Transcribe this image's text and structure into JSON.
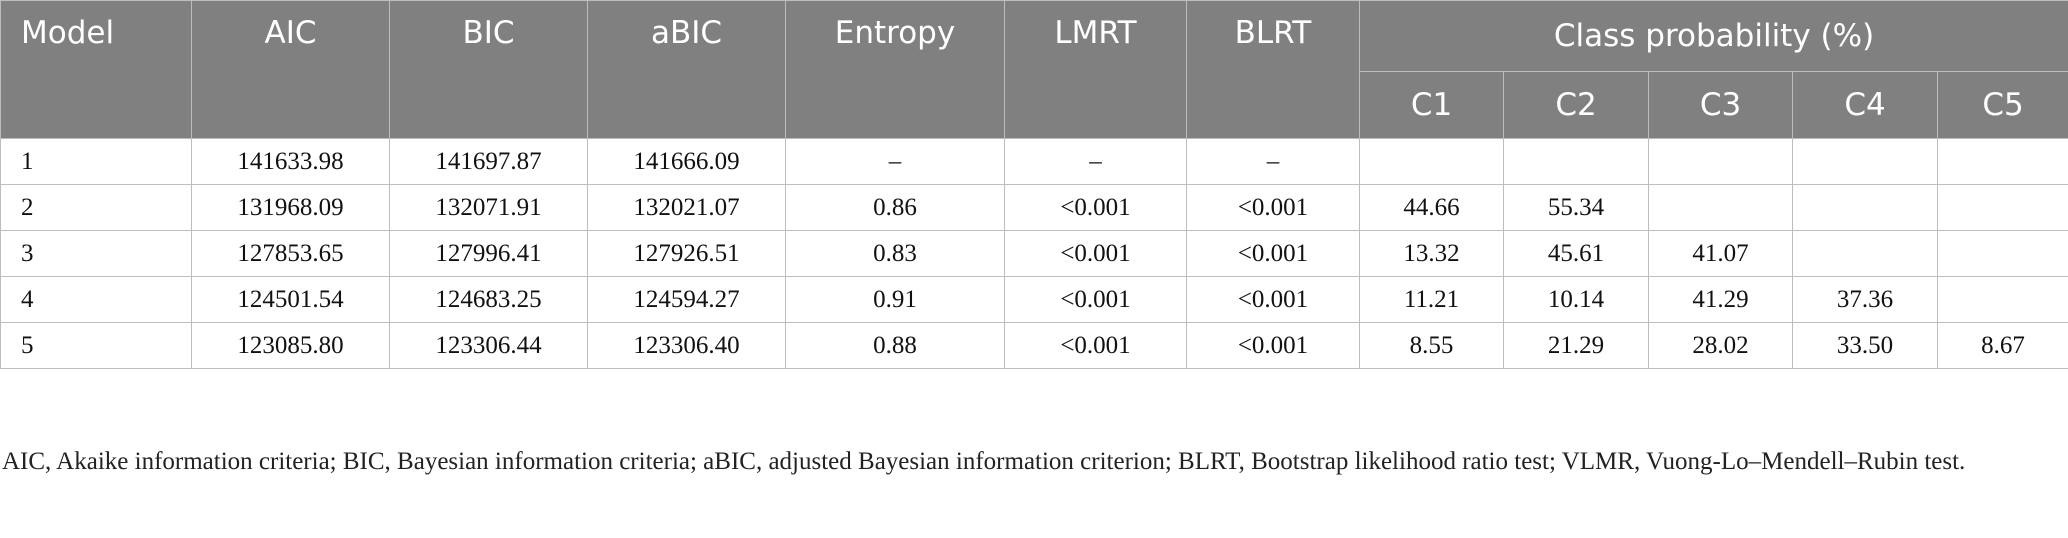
{
  "table": {
    "headers": {
      "model": "Model",
      "aic": "AIC",
      "bic": "BIC",
      "abic": "aBIC",
      "entropy": "Entropy",
      "lmrt": "LMRT",
      "blrt": "BLRT",
      "class_probability": "Class probability (%)",
      "c1": "C1",
      "c2": "C2",
      "c3": "C3",
      "c4": "C4",
      "c5": "C5"
    },
    "rows": [
      {
        "model": "1",
        "aic": "141633.98",
        "bic": "141697.87",
        "abic": "141666.09",
        "entropy": "–",
        "lmrt": "–",
        "blrt": "–",
        "c1": "",
        "c2": "",
        "c3": "",
        "c4": "",
        "c5": ""
      },
      {
        "model": "2",
        "aic": "131968.09",
        "bic": "132071.91",
        "abic": "132021.07",
        "entropy": "0.86",
        "lmrt": "<0.001",
        "blrt": "<0.001",
        "c1": "44.66",
        "c2": "55.34",
        "c3": "",
        "c4": "",
        "c5": ""
      },
      {
        "model": "3",
        "aic": "127853.65",
        "bic": "127996.41",
        "abic": "127926.51",
        "entropy": "0.83",
        "lmrt": "<0.001",
        "blrt": "<0.001",
        "c1": "13.32",
        "c2": "45.61",
        "c3": "41.07",
        "c4": "",
        "c5": ""
      },
      {
        "model": "4",
        "aic": "124501.54",
        "bic": "124683.25",
        "abic": "124594.27",
        "entropy": "0.91",
        "lmrt": "<0.001",
        "blrt": "<0.001",
        "c1": "11.21",
        "c2": "10.14",
        "c3": "41.29",
        "c4": "37.36",
        "c5": ""
      },
      {
        "model": "5",
        "aic": "123085.80",
        "bic": "123306.44",
        "abic": "123306.40",
        "entropy": "0.88",
        "lmrt": "<0.001",
        "blrt": "<0.001",
        "c1": "8.55",
        "c2": "21.29",
        "c3": "28.02",
        "c4": "33.50",
        "c5": "8.67"
      }
    ]
  },
  "footnote": "AIC, Akaike information criteria; BIC, Bayesian information criteria; aBIC, adjusted Bayesian information criterion; BLRT, Bootstrap likelihood ratio test; VLMR, Vuong-Lo–Mendell–Rubin test.",
  "colors": {
    "header_bg": "#808080",
    "header_text": "#ffffff",
    "grid": "#bdbdbd"
  }
}
